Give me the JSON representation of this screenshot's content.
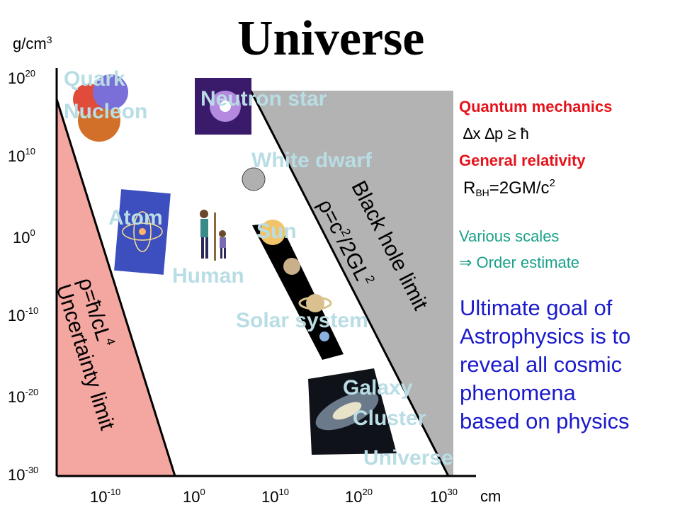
{
  "title": "Universe",
  "y_unit": "g/cm3",
  "x_unit": "cm",
  "y_ticks": [
    {
      "base": "10",
      "exp": "20"
    },
    {
      "base": "10",
      "exp": "10"
    },
    {
      "base": "10",
      "exp": "0"
    },
    {
      "base": "10",
      "exp": "-10"
    },
    {
      "base": "10",
      "exp": "-20"
    },
    {
      "base": "10",
      "exp": "-30"
    }
  ],
  "x_ticks": [
    {
      "base": "10",
      "exp": "-10"
    },
    {
      "base": "10",
      "exp": "0"
    },
    {
      "base": "10",
      "exp": "10"
    },
    {
      "base": "10",
      "exp": "20"
    },
    {
      "base": "10",
      "exp": "30"
    }
  ],
  "objects": {
    "quark": "Quark",
    "nucleon": "Nucleon",
    "neutron_star": "Neutron star",
    "white_dwarf": "White dwarf",
    "atom": "Atom",
    "sun": "Sun",
    "human": "Human",
    "solar_system": "Solar system",
    "galaxy": "Galaxy",
    "cluster": "Cluster",
    "universe": "Universe"
  },
  "limits": {
    "black_hole": "Black hole limit",
    "black_hole_formula_rho": "ρ=c",
    "black_hole_formula_exp": "2",
    "black_hole_formula_rest": "/2GL",
    "black_hole_formula_exp2": "2",
    "uncertainty": "Uncertainty limit",
    "uncertainty_formula": "ρ=ħ/cL",
    "uncertainty_formula_exp": "4"
  },
  "side": {
    "qm_title": "Quantum mechanics",
    "qm_formula": "∆x ∆p ≥ ħ",
    "gr_title": "General relativity",
    "gr_formula_r": "R",
    "gr_formula_sub": "BH",
    "gr_formula_rest": "=2GM/c",
    "gr_formula_exp": "2",
    "scales_line1": "Various scales",
    "scales_line2": "⇒ Order estimate",
    "goal_lines": [
      "Ultimate goal of",
      "Astrophysics is to",
      "reveal all cosmic",
      "phenomena",
      "based on physics"
    ]
  },
  "colors": {
    "uncertainty_fill": "#f4a6a0",
    "blackhole_fill": "#b3b3b3",
    "label_color": "#b9dde4",
    "red": "#e5131b",
    "teal": "#1aa08a",
    "blue": "#1a1acb"
  }
}
